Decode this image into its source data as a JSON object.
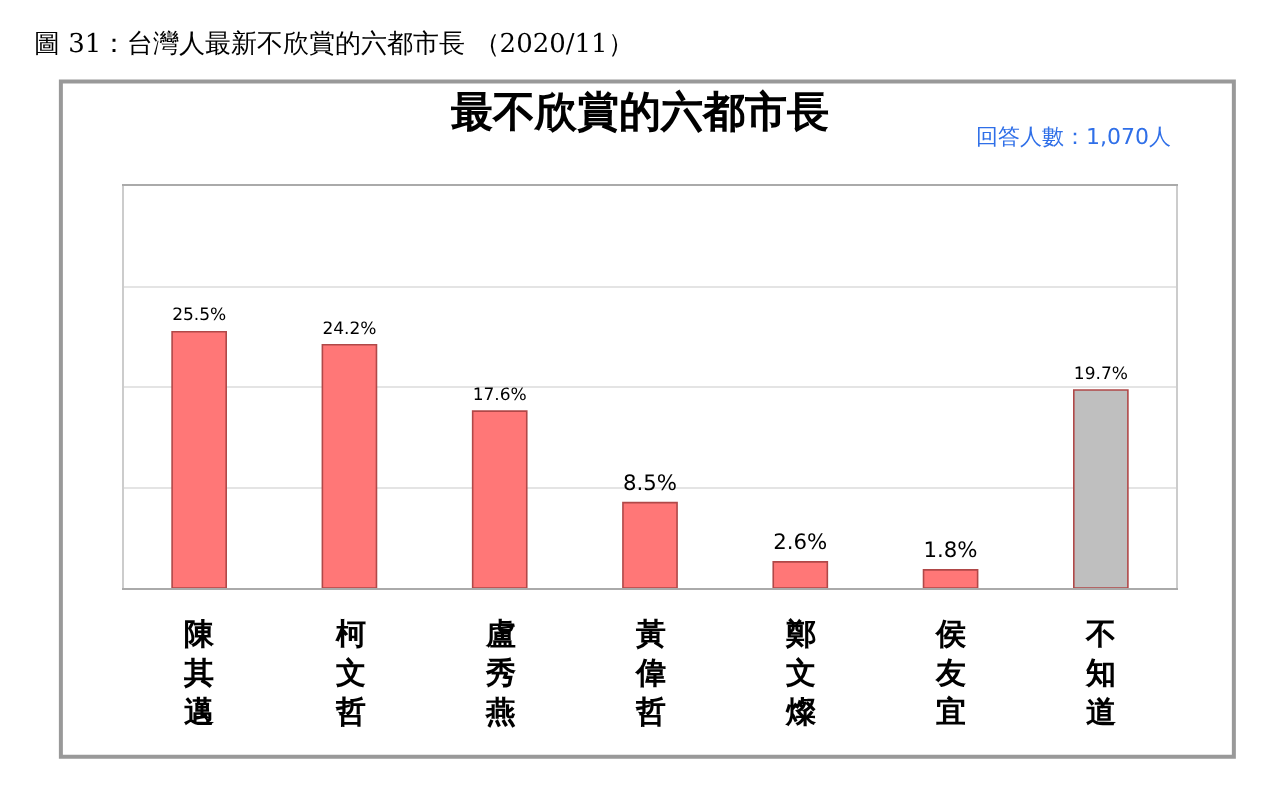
{
  "chart_data": {
    "type": "bar",
    "title": "最不欣賞的六都市長",
    "annotations": [
      "圖 31：台灣人最新不欣賞的六都市長 （2020/11）",
      "回答人數：1,070人"
    ],
    "categories": [
      "陳其邁",
      "柯文哲",
      "盧秀燕",
      "黃偉哲",
      "鄭文燦",
      "侯友宜",
      "不知道"
    ],
    "values": [
      25.5,
      24.2,
      17.6,
      8.5,
      2.6,
      1.8,
      19.7
    ],
    "value_labels": [
      "25.5%",
      "24.2%",
      "17.6%",
      "8.5%",
      "2.6%",
      "1.8%",
      "19.7%"
    ],
    "colors": [
      "#ff7777",
      "#ff7777",
      "#ff7777",
      "#ff7777",
      "#ff7777",
      "#ff7777",
      "#bfbfbf"
    ],
    "ylim": [
      0,
      40
    ],
    "yticks": [
      {
        "value": 0,
        "label": null
      },
      {
        "value": 10,
        "label": null
      },
      {
        "value": 20,
        "label": null
      },
      {
        "value": 30,
        "label": null
      },
      {
        "value": 40,
        "label": null
      }
    ],
    "tick_labels": "x",
    "grid": "y"
  }
}
